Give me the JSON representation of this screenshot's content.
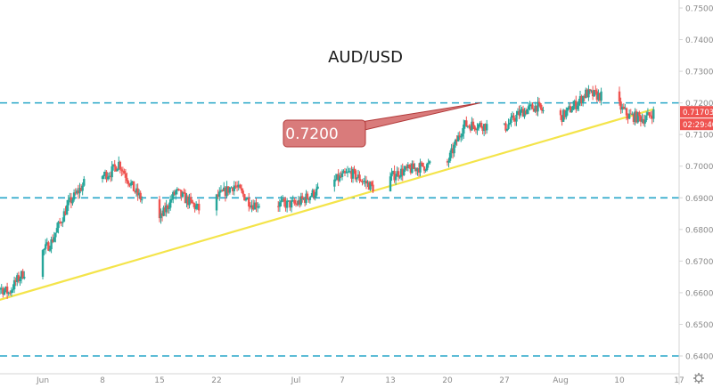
{
  "chart_data": {
    "type": "candlestick",
    "title": "AUD/USD",
    "annotation": {
      "label": "0.7200",
      "points_to": {
        "date": "2020-07-24",
        "price": 0.72
      }
    },
    "ylim": [
      0.6375,
      0.7575
    ],
    "xlim": [
      "2020-05-27",
      "2020-08-18"
    ],
    "y_ticks": [
      "0.75000",
      "0.74000",
      "0.73000",
      "0.72000",
      "0.71000",
      "0.70000",
      "0.69000",
      "0.68000",
      "0.67000",
      "0.66000",
      "0.65000",
      "0.64000"
    ],
    "x_ticks": [
      {
        "date": "2020-06-01",
        "label": "Jun"
      },
      {
        "date": "2020-06-08",
        "label": "8"
      },
      {
        "date": "2020-06-15",
        "label": "15"
      },
      {
        "date": "2020-06-22",
        "label": "22"
      },
      {
        "date": "2020-07-01",
        "label": "Jul"
      },
      {
        "date": "2020-07-07",
        "label": "7"
      },
      {
        "date": "2020-07-13",
        "label": "13"
      },
      {
        "date": "2020-07-20",
        "label": "20"
      },
      {
        "date": "2020-07-27",
        "label": "27"
      },
      {
        "date": "2020-08-03",
        "label": "Aug"
      },
      {
        "date": "2020-08-10",
        "label": "10"
      },
      {
        "date": "2020-08-17",
        "label": "17"
      }
    ],
    "horizontal_levels": [
      0.72,
      0.69,
      0.64
    ],
    "trendline": {
      "from": {
        "date": "2020-05-26",
        "price": 0.657
      },
      "to": {
        "date": "2020-08-14",
        "price": 0.718
      }
    },
    "last_price": "0.71703",
    "countdown": "02:29:40",
    "anchors": [
      {
        "date": "2020-05-25",
        "price": 0.656
      },
      {
        "date": "2020-05-26",
        "price": 0.663
      },
      {
        "date": "2020-05-28",
        "price": 0.66
      },
      {
        "date": "2020-05-29",
        "price": 0.664
      },
      {
        "date": "2020-06-02",
        "price": 0.676
      },
      {
        "date": "2020-06-04",
        "price": 0.688
      },
      {
        "date": "2020-06-06",
        "price": 0.695
      },
      {
        "date": "2020-06-09",
        "price": 0.698
      },
      {
        "date": "2020-06-10",
        "price": 0.701
      },
      {
        "date": "2020-06-12",
        "price": 0.692
      },
      {
        "date": "2020-06-15",
        "price": 0.683
      },
      {
        "date": "2020-06-17",
        "price": 0.692
      },
      {
        "date": "2020-06-20",
        "price": 0.686
      },
      {
        "date": "2020-06-24",
        "price": 0.694
      },
      {
        "date": "2020-06-26",
        "price": 0.688
      },
      {
        "date": "2020-07-01",
        "price": 0.688
      },
      {
        "date": "2020-07-05",
        "price": 0.694
      },
      {
        "date": "2020-07-08",
        "price": 0.698
      },
      {
        "date": "2020-07-11",
        "price": 0.693
      },
      {
        "date": "2020-07-14",
        "price": 0.698
      },
      {
        "date": "2020-07-17",
        "price": 0.7
      },
      {
        "date": "2020-07-20",
        "price": 0.701
      },
      {
        "date": "2020-07-22",
        "price": 0.713
      },
      {
        "date": "2020-07-24",
        "price": 0.713
      },
      {
        "date": "2020-07-27",
        "price": 0.712
      },
      {
        "date": "2020-07-29",
        "price": 0.717
      },
      {
        "date": "2020-07-31",
        "price": 0.719
      },
      {
        "date": "2020-08-01",
        "price": 0.717
      },
      {
        "date": "2020-08-02",
        "price": 0.713
      },
      {
        "date": "2020-08-05",
        "price": 0.72
      },
      {
        "date": "2020-08-06",
        "price": 0.723
      },
      {
        "date": "2020-08-08",
        "price": 0.722
      },
      {
        "date": "2020-08-10",
        "price": 0.719
      },
      {
        "date": "2020-08-11",
        "price": 0.716
      },
      {
        "date": "2020-08-13",
        "price": 0.715
      },
      {
        "date": "2020-08-14",
        "price": 0.717
      }
    ],
    "candles_per_day": 6,
    "colors": {
      "up": "#26a69a",
      "down": "#ef5350",
      "wick": "#8a8a8a",
      "trendline": "#f4e44a",
      "level": "#26a6c8",
      "annotation_fill": "#d97b7b",
      "annotation_border": "#b23a3a",
      "last_price_bg": "#ef5350",
      "countdown_bg": "#ef5350",
      "axis_text": "#8a8a8a",
      "axis_line": "#d6d6d6",
      "title": "#1a1a1a"
    }
  },
  "ui": {
    "settings_icon": "gear-icon"
  }
}
